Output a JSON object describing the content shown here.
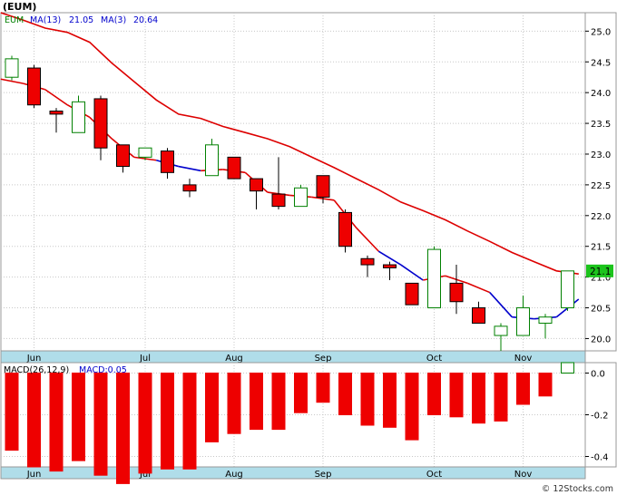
{
  "chart_data": [
    {
      "type": "candlestick",
      "symbol_label": "(EUM)",
      "legend": {
        "price_label": "EUM",
        "ma13_label": "MA(13)",
        "ma13_value": "21.05",
        "ma3_label": "MA(3)",
        "ma3_value": "20.64"
      },
      "colors": {
        "up": "#008000",
        "down": "#ee0000",
        "ma13": "#dd0000",
        "ma3_up": "#0000cc",
        "ma3_down": "#dd0000",
        "axis_bg": "#b0dde9",
        "grid": "#c8c8c8"
      },
      "ylim": [
        19.8,
        25.3
      ],
      "y_ticks": [
        "20.0",
        "20.5",
        "21.0",
        "21.5",
        "22.0",
        "22.5",
        "23.0",
        "23.5",
        "24.0",
        "24.5",
        "25.0"
      ],
      "x_ticks": [
        {
          "label": "Jun",
          "index": 1
        },
        {
          "label": "Jul",
          "index": 6
        },
        {
          "label": "Aug",
          "index": 10
        },
        {
          "label": "Sep",
          "index": 14
        },
        {
          "label": "Oct",
          "index": 19
        },
        {
          "label": "Nov",
          "index": 23
        }
      ],
      "last_price_label": "21.1",
      "last_price": 21.1,
      "candles": [
        {
          "o": 24.25,
          "h": 24.6,
          "l": 24.2,
          "c": 24.55
        },
        {
          "o": 24.4,
          "h": 24.45,
          "l": 23.75,
          "c": 23.8
        },
        {
          "o": 23.7,
          "h": 23.75,
          "l": 23.35,
          "c": 23.65
        },
        {
          "o": 23.35,
          "h": 23.95,
          "l": 23.35,
          "c": 23.85
        },
        {
          "o": 23.9,
          "h": 23.95,
          "l": 22.9,
          "c": 23.1
        },
        {
          "o": 23.15,
          "h": 23.15,
          "l": 22.7,
          "c": 22.8
        },
        {
          "o": 22.95,
          "h": 23.1,
          "l": 22.9,
          "c": 23.1
        },
        {
          "o": 23.05,
          "h": 23.1,
          "l": 22.6,
          "c": 22.7
        },
        {
          "o": 22.5,
          "h": 22.6,
          "l": 22.3,
          "c": 22.4
        },
        {
          "o": 22.65,
          "h": 23.25,
          "l": 22.65,
          "c": 23.15
        },
        {
          "o": 22.95,
          "h": 22.95,
          "l": 22.6,
          "c": 22.6
        },
        {
          "o": 22.6,
          "h": 22.6,
          "l": 22.1,
          "c": 22.4
        },
        {
          "o": 22.35,
          "h": 22.95,
          "l": 22.1,
          "c": 22.15
        },
        {
          "o": 22.15,
          "h": 22.5,
          "l": 22.15,
          "c": 22.45
        },
        {
          "o": 22.65,
          "h": 22.65,
          "l": 22.2,
          "c": 22.3
        },
        {
          "o": 22.05,
          "h": 22.1,
          "l": 21.4,
          "c": 21.5
        },
        {
          "o": 21.3,
          "h": 21.35,
          "l": 21.0,
          "c": 21.2
        },
        {
          "o": 21.2,
          "h": 21.25,
          "l": 20.95,
          "c": 21.15
        },
        {
          "o": 20.9,
          "h": 20.9,
          "l": 20.55,
          "c": 20.55
        },
        {
          "o": 20.5,
          "h": 21.5,
          "l": 20.5,
          "c": 21.45
        },
        {
          "o": 20.9,
          "h": 21.2,
          "l": 20.4,
          "c": 20.6
        },
        {
          "o": 20.5,
          "h": 20.6,
          "l": 20.25,
          "c": 20.25
        },
        {
          "o": 20.05,
          "h": 20.25,
          "l": 19.8,
          "c": 20.2
        },
        {
          "o": 20.05,
          "h": 20.7,
          "l": 20.05,
          "c": 20.5
        },
        {
          "o": 20.25,
          "h": 20.4,
          "l": 20.0,
          "c": 20.35
        },
        {
          "o": 20.5,
          "h": 21.1,
          "l": 20.45,
          "c": 21.1
        }
      ],
      "ma13": [
        25.3,
        25.18,
        25.05,
        24.98,
        24.82,
        24.48,
        24.18,
        23.88,
        23.65,
        23.58,
        23.45,
        23.35,
        23.25,
        23.12,
        22.95,
        22.78,
        22.6,
        22.42,
        22.22,
        22.08,
        21.93,
        21.75,
        21.58,
        21.4,
        21.25,
        21.1,
        21.05
      ],
      "ma3": [
        24.22,
        24.15,
        24.05,
        23.8,
        23.6,
        23.25,
        22.95,
        22.9,
        22.8,
        22.73,
        22.75,
        22.7,
        22.38,
        22.33,
        22.3,
        22.25,
        21.8,
        21.42,
        21.2,
        20.95,
        21.02,
        20.9,
        20.75,
        20.35,
        20.32,
        20.35,
        20.64
      ],
      "ma3_up_segments": [
        [
          7,
          9
        ],
        [
          17,
          19
        ],
        [
          22,
          26
        ]
      ]
    },
    {
      "type": "bar",
      "label": "MACD(26,12,9)",
      "value_label": "MACD:0.05",
      "ylim": [
        -0.45,
        0.05
      ],
      "y_ticks": [
        "0.0",
        "-0.2",
        "-0.4"
      ],
      "x_ticks": [
        {
          "label": "Jun",
          "index": 1
        },
        {
          "label": "Jul",
          "index": 6
        },
        {
          "label": "Aug",
          "index": 10
        },
        {
          "label": "Sep",
          "index": 14
        },
        {
          "label": "Oct",
          "index": 19
        },
        {
          "label": "Nov",
          "index": 23
        }
      ],
      "values": [
        -0.37,
        -0.45,
        -0.47,
        -0.42,
        -0.49,
        -0.53,
        -0.48,
        -0.46,
        -0.46,
        -0.33,
        -0.29,
        -0.27,
        -0.27,
        -0.19,
        -0.14,
        -0.2,
        -0.25,
        -0.26,
        -0.32,
        -0.2,
        -0.21,
        -0.24,
        -0.23,
        -0.15,
        -0.11,
        0.05
      ]
    }
  ],
  "watermark": "© 12Stocks.com"
}
